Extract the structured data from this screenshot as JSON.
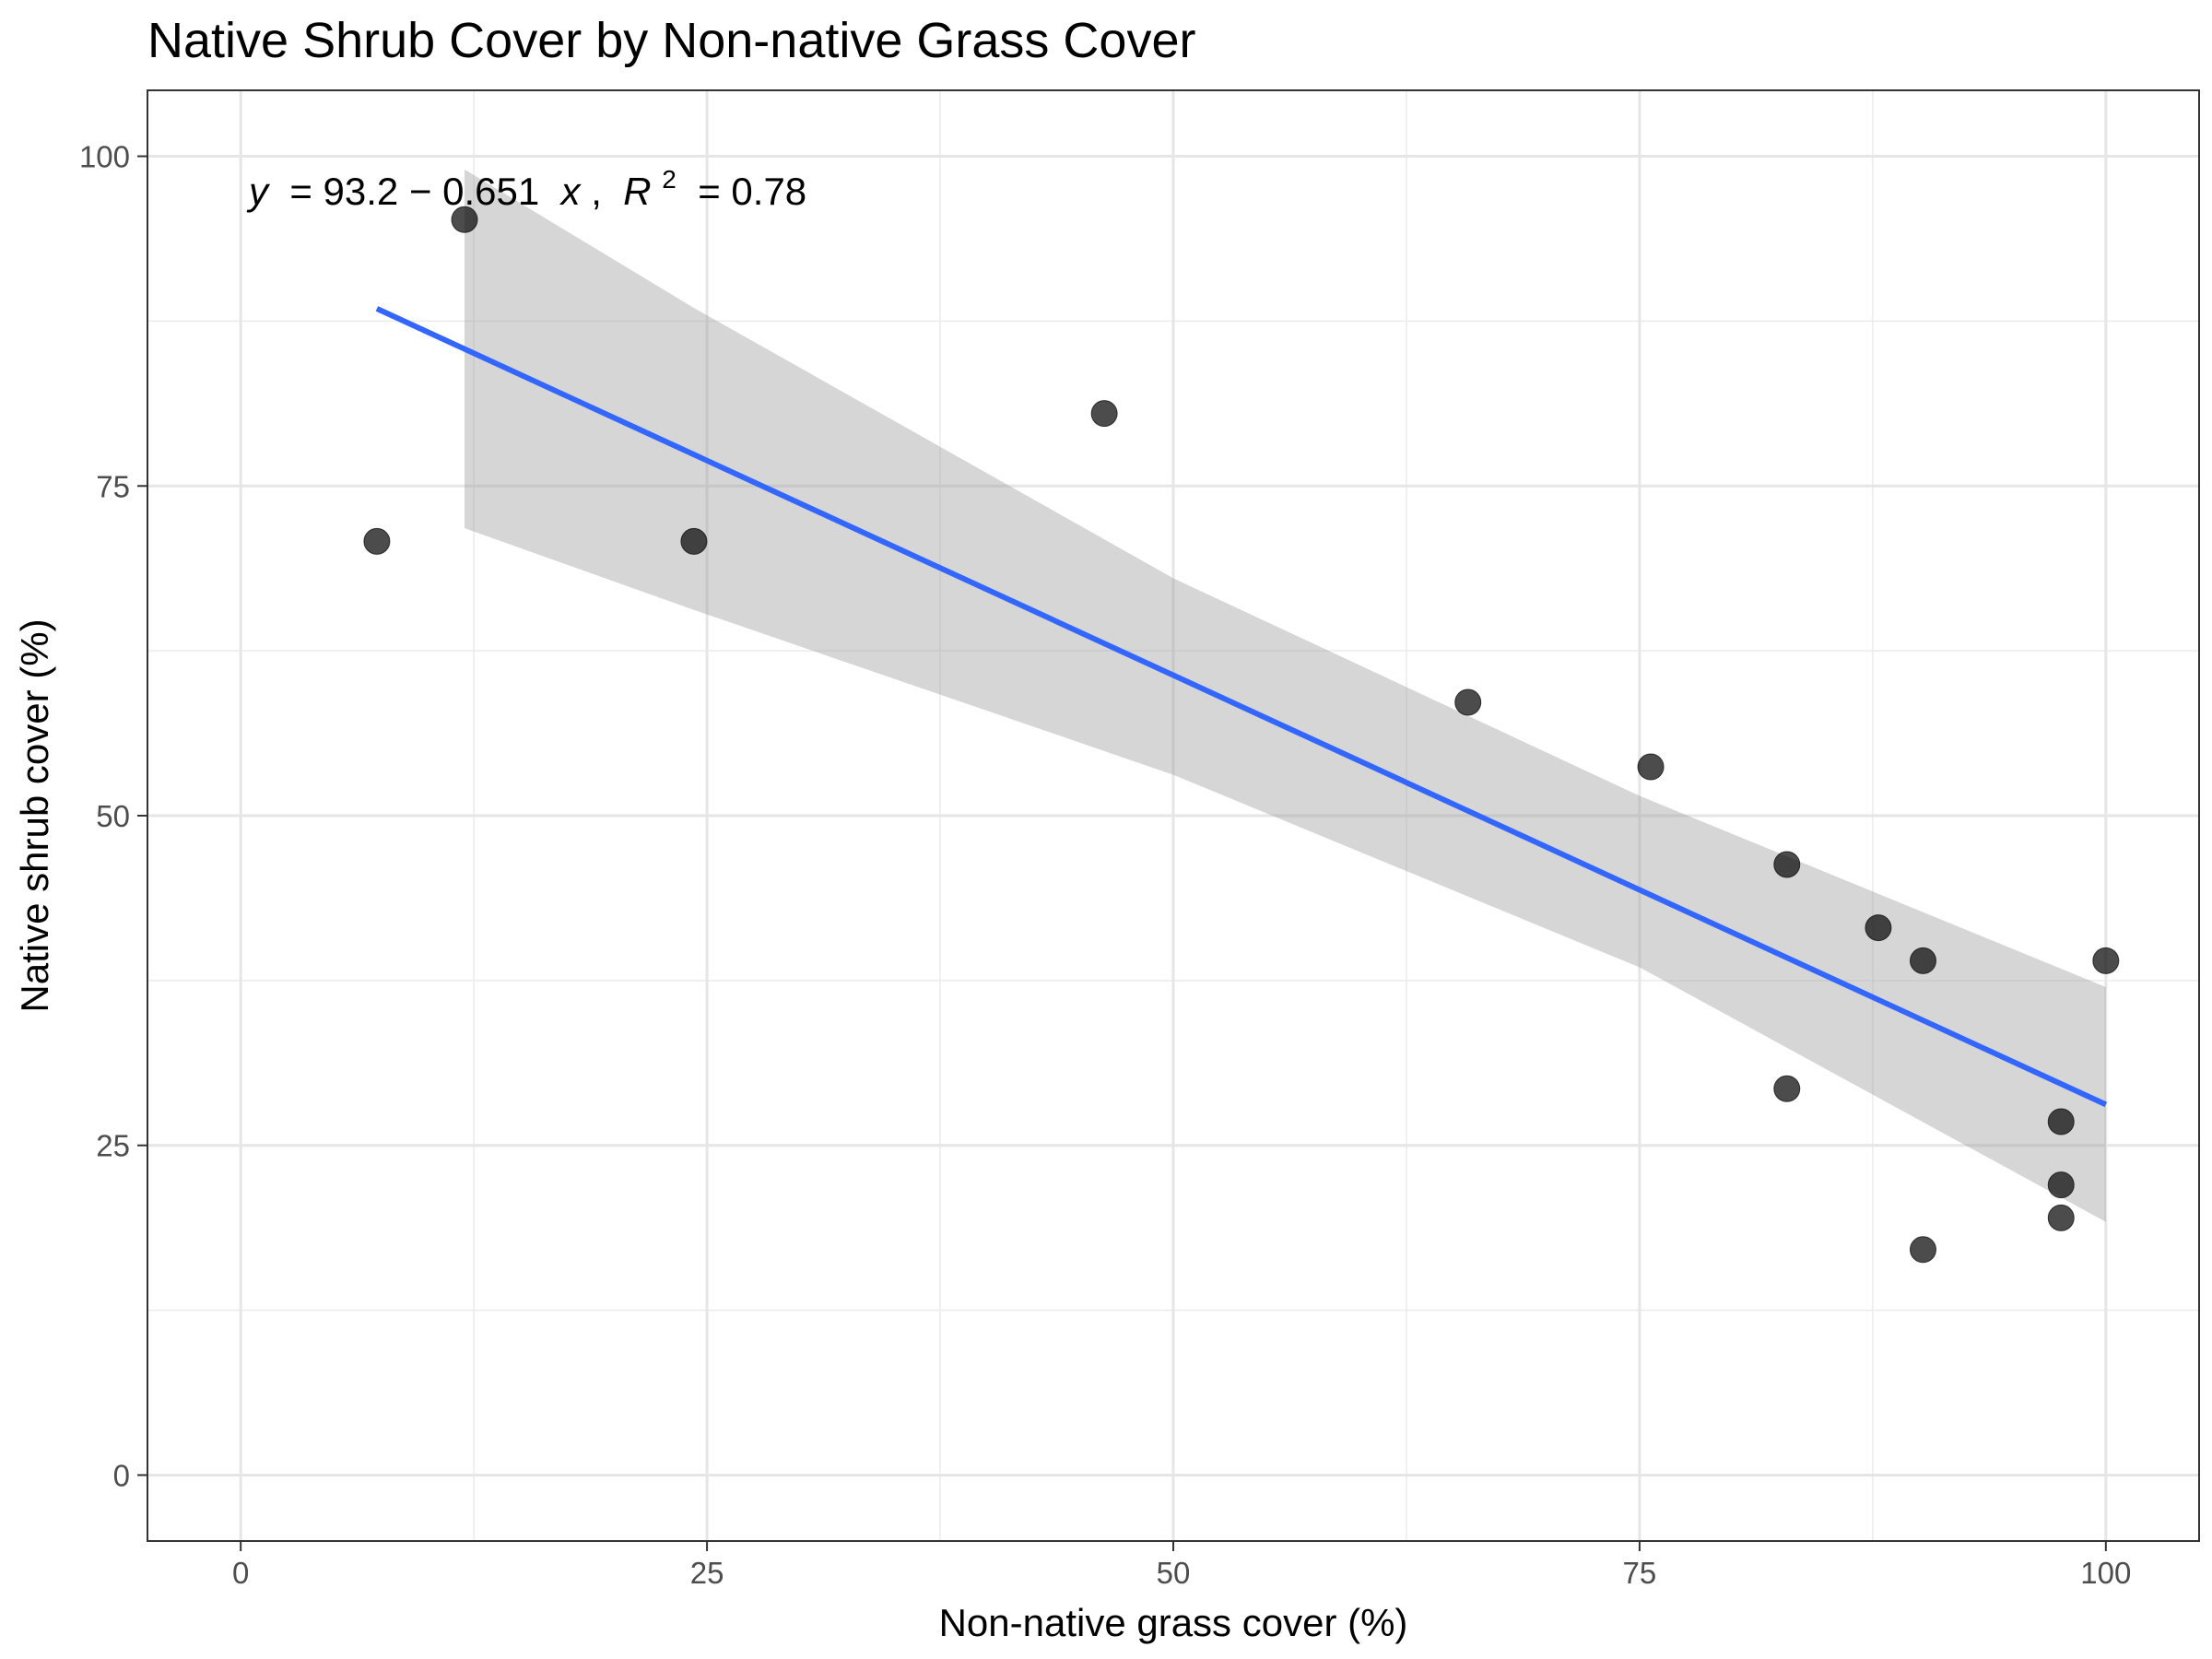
{
  "chart_data": {
    "type": "scatter",
    "title": "Native Shrub Cover by Non-native Grass Cover",
    "xlabel": "Non-native grass cover (%)",
    "ylabel": "Native shrub cover (%)",
    "xlim": [
      -5,
      105
    ],
    "ylim": [
      -5,
      105
    ],
    "x_ticks": [
      0,
      25,
      50,
      75,
      100
    ],
    "y_ticks": [
      0,
      25,
      50,
      75,
      100
    ],
    "x_minor": [
      12.5,
      37.5,
      62.5,
      87.5
    ],
    "y_minor": [
      12.5,
      37.5,
      62.5,
      87.5
    ],
    "grid": true,
    "points": [
      {
        "x": 7.3,
        "y": 70.8
      },
      {
        "x": 12.0,
        "y": 95.2
      },
      {
        "x": 24.3,
        "y": 70.8
      },
      {
        "x": 46.3,
        "y": 80.5
      },
      {
        "x": 65.8,
        "y": 58.6
      },
      {
        "x": 75.6,
        "y": 53.7
      },
      {
        "x": 82.9,
        "y": 46.3
      },
      {
        "x": 82.9,
        "y": 29.3
      },
      {
        "x": 87.8,
        "y": 41.5
      },
      {
        "x": 90.2,
        "y": 39.0
      },
      {
        "x": 90.2,
        "y": 17.1
      },
      {
        "x": 97.6,
        "y": 26.8
      },
      {
        "x": 97.6,
        "y": 22.0
      },
      {
        "x": 97.6,
        "y": 19.5
      },
      {
        "x": 100.0,
        "y": 39.0
      }
    ],
    "fit": {
      "intercept": 93.2,
      "slope": -0.651,
      "x_range": [
        7.3,
        100.0
      ],
      "color": "#3366ff",
      "band_color": "#999999",
      "band": [
        {
          "x": 12.0,
          "lower": 71.8,
          "upper": 99.0
        },
        {
          "x": 24.3,
          "lower": 65.6,
          "upper": 88.5
        },
        {
          "x": 50.0,
          "lower": 53.1,
          "upper": 68.0
        },
        {
          "x": 75.0,
          "lower": 38.5,
          "upper": 51.5
        },
        {
          "x": 100.0,
          "lower": 19.2,
          "upper": 37.0
        }
      ]
    },
    "equation": {
      "y": "y",
      "eq": " = 93.2 − 0.651 ",
      "x": "x",
      "sep": ", ",
      "r": "R",
      "sup": "2",
      "val": " = 0.78"
    },
    "point_color": "#000000"
  }
}
